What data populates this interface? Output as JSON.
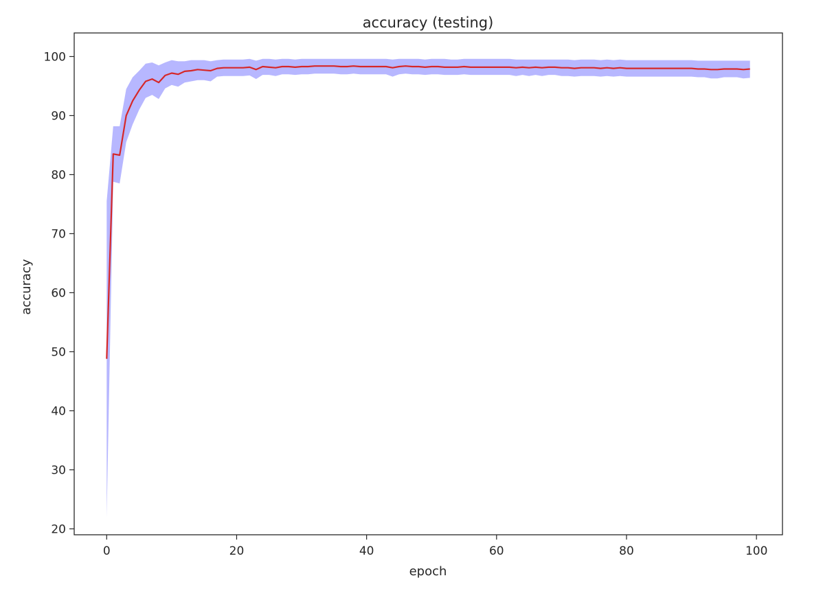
{
  "chart_data": {
    "type": "line",
    "title": "accuracy (testing)",
    "xlabel": "epoch",
    "ylabel": "accuracy",
    "xlim": [
      -5,
      104
    ],
    "ylim": [
      19,
      104
    ],
    "xticks": [
      0,
      20,
      40,
      60,
      80,
      100
    ],
    "yticks": [
      20,
      30,
      40,
      50,
      60,
      70,
      80,
      90,
      100
    ],
    "grid": false,
    "legend": "none",
    "colors": {
      "line": "#d62728",
      "band": "#aaaaff",
      "axes": "#262626"
    },
    "series": [
      {
        "style": "line",
        "x": [
          0,
          1,
          2,
          3,
          4,
          5,
          6,
          7,
          8,
          9,
          10,
          11,
          12,
          13,
          14,
          15,
          16,
          17,
          18,
          19,
          20,
          21,
          22,
          23,
          24,
          25,
          26,
          27,
          28,
          29,
          30,
          31,
          32,
          33,
          34,
          35,
          36,
          37,
          38,
          39,
          40,
          41,
          42,
          43,
          44,
          45,
          46,
          47,
          48,
          49,
          50,
          51,
          52,
          53,
          54,
          55,
          56,
          57,
          58,
          59,
          60,
          61,
          62,
          63,
          64,
          65,
          66,
          67,
          68,
          69,
          70,
          71,
          72,
          73,
          74,
          75,
          76,
          77,
          78,
          79,
          80,
          81,
          82,
          83,
          84,
          85,
          86,
          87,
          88,
          89,
          90,
          91,
          92,
          93,
          94,
          95,
          96,
          97,
          98,
          99
        ],
        "y": [
          48.8,
          83.5,
          83.3,
          90.0,
          92.5,
          94.3,
          95.8,
          96.2,
          95.6,
          96.8,
          97.2,
          97.0,
          97.5,
          97.6,
          97.8,
          97.7,
          97.6,
          98.0,
          98.1,
          98.1,
          98.1,
          98.1,
          98.2,
          97.8,
          98.3,
          98.2,
          98.1,
          98.3,
          98.3,
          98.2,
          98.3,
          98.3,
          98.4,
          98.4,
          98.4,
          98.4,
          98.3,
          98.3,
          98.4,
          98.3,
          98.3,
          98.3,
          98.3,
          98.3,
          98.1,
          98.3,
          98.4,
          98.3,
          98.3,
          98.2,
          98.3,
          98.3,
          98.2,
          98.2,
          98.2,
          98.3,
          98.2,
          98.2,
          98.2,
          98.2,
          98.2,
          98.2,
          98.2,
          98.1,
          98.2,
          98.1,
          98.2,
          98.1,
          98.2,
          98.2,
          98.1,
          98.1,
          98.0,
          98.1,
          98.1,
          98.1,
          98.0,
          98.1,
          98.0,
          98.1,
          98.0,
          98.0,
          98.0,
          98.0,
          98.0,
          98.0,
          98.0,
          98.0,
          98.0,
          98.0,
          98.0,
          97.9,
          97.9,
          97.8,
          97.8,
          97.9,
          97.9,
          97.9,
          97.8,
          97.9
        ]
      },
      {
        "style": "band",
        "x": [
          0,
          1,
          2,
          3,
          4,
          5,
          6,
          7,
          8,
          9,
          10,
          11,
          12,
          13,
          14,
          15,
          16,
          17,
          18,
          19,
          20,
          21,
          22,
          23,
          24,
          25,
          26,
          27,
          28,
          29,
          30,
          31,
          32,
          33,
          34,
          35,
          36,
          37,
          38,
          39,
          40,
          41,
          42,
          43,
          44,
          45,
          46,
          47,
          48,
          49,
          50,
          51,
          52,
          53,
          54,
          55,
          56,
          57,
          58,
          59,
          60,
          61,
          62,
          63,
          64,
          65,
          66,
          67,
          68,
          69,
          70,
          71,
          72,
          73,
          74,
          75,
          76,
          77,
          78,
          79,
          80,
          81,
          82,
          83,
          84,
          85,
          86,
          87,
          88,
          89,
          90,
          91,
          92,
          93,
          94,
          95,
          96,
          97,
          98,
          99
        ],
        "upper": [
          75.5,
          88.2,
          88.2,
          94.5,
          96.5,
          97.6,
          98.8,
          99.0,
          98.5,
          99.0,
          99.4,
          99.2,
          99.2,
          99.4,
          99.4,
          99.4,
          99.2,
          99.4,
          99.5,
          99.5,
          99.5,
          99.5,
          99.6,
          99.3,
          99.6,
          99.6,
          99.5,
          99.6,
          99.6,
          99.5,
          99.6,
          99.6,
          99.6,
          99.6,
          99.6,
          99.6,
          99.6,
          99.6,
          99.6,
          99.6,
          99.6,
          99.6,
          99.6,
          99.6,
          99.5,
          99.6,
          99.6,
          99.6,
          99.6,
          99.5,
          99.6,
          99.6,
          99.6,
          99.5,
          99.5,
          99.6,
          99.6,
          99.6,
          99.6,
          99.6,
          99.6,
          99.6,
          99.6,
          99.5,
          99.5,
          99.5,
          99.5,
          99.5,
          99.5,
          99.5,
          99.5,
          99.5,
          99.4,
          99.5,
          99.5,
          99.5,
          99.4,
          99.5,
          99.4,
          99.5,
          99.4,
          99.4,
          99.4,
          99.4,
          99.4,
          99.4,
          99.4,
          99.4,
          99.4,
          99.4,
          99.4,
          99.3,
          99.3,
          99.3,
          99.3,
          99.3,
          99.3,
          99.3,
          99.3,
          99.3
        ],
        "lower": [
          22.0,
          78.8,
          78.5,
          85.5,
          88.5,
          91.0,
          93.0,
          93.5,
          92.8,
          94.6,
          95.2,
          94.9,
          95.6,
          95.8,
          96.0,
          96.0,
          95.8,
          96.6,
          96.7,
          96.7,
          96.7,
          96.7,
          96.8,
          96.2,
          96.9,
          96.9,
          96.7,
          97.0,
          97.0,
          96.9,
          97.0,
          97.0,
          97.1,
          97.1,
          97.1,
          97.1,
          97.0,
          97.0,
          97.1,
          97.0,
          97.0,
          97.0,
          97.0,
          97.0,
          96.6,
          97.0,
          97.1,
          97.0,
          97.0,
          96.9,
          97.0,
          97.0,
          96.9,
          96.9,
          96.9,
          97.0,
          96.9,
          96.9,
          96.9,
          96.9,
          96.9,
          96.9,
          96.9,
          96.7,
          96.9,
          96.7,
          96.9,
          96.7,
          96.9,
          96.9,
          96.7,
          96.7,
          96.6,
          96.7,
          96.7,
          96.7,
          96.6,
          96.7,
          96.6,
          96.7,
          96.6,
          96.6,
          96.6,
          96.6,
          96.6,
          96.6,
          96.6,
          96.6,
          96.6,
          96.6,
          96.6,
          96.5,
          96.5,
          96.3,
          96.3,
          96.5,
          96.5,
          96.5,
          96.3,
          96.4
        ]
      }
    ]
  }
}
